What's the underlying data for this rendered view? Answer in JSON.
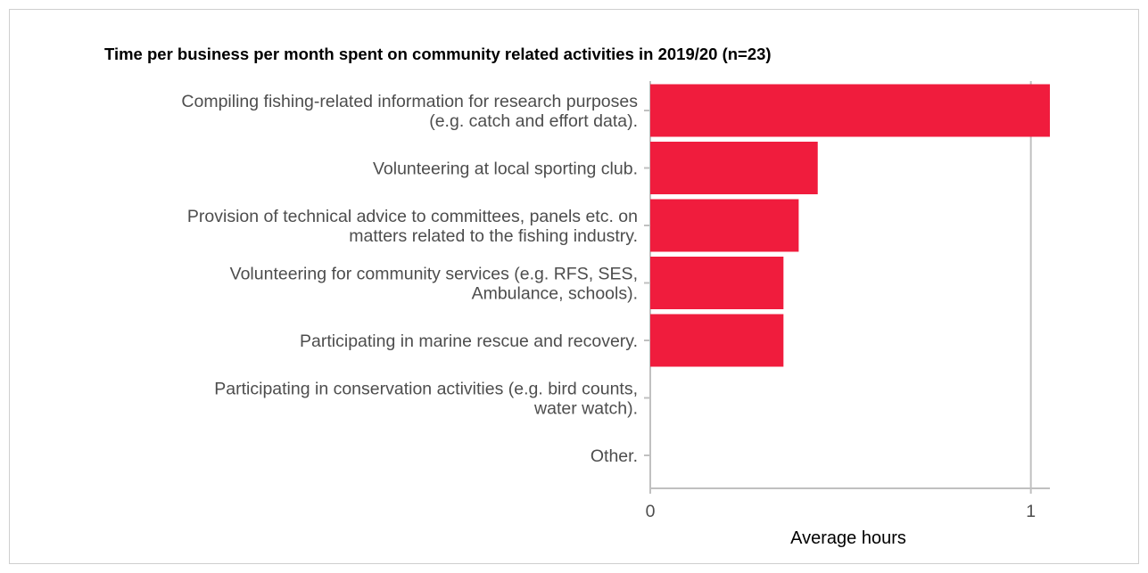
{
  "chart_data": {
    "type": "bar",
    "orientation": "horizontal",
    "title": "Time per business per month spent on community related activities in 2019/20 (n=23)",
    "xlabel": "Average hours",
    "ylabel": "",
    "categories": [
      [
        "Compiling fishing-related information for research purposes",
        "(e.g. catch and effort data)."
      ],
      [
        "Volunteering at local sporting club."
      ],
      [
        "Provision of technical advice to committees, panels etc. on",
        "matters related to the fishing industry."
      ],
      [
        "Volunteering for community services (e.g. RFS, SES,",
        "Ambulance, schools)."
      ],
      [
        "Participating in marine rescue and recovery."
      ],
      [
        "Participating in conservation activities (e.g. bird counts,",
        "water watch)."
      ],
      [
        "Other."
      ]
    ],
    "values": [
      1.05,
      0.44,
      0.39,
      0.35,
      0.35,
      0,
      0
    ],
    "xlim": [
      0,
      1.05
    ],
    "xticks": [
      0,
      1
    ],
    "xtick_labels": [
      "0",
      "1"
    ],
    "grid": "vertical-major",
    "bar_color": "#f01c3d",
    "axis_color": "#c0c0c0",
    "legend": "none"
  }
}
